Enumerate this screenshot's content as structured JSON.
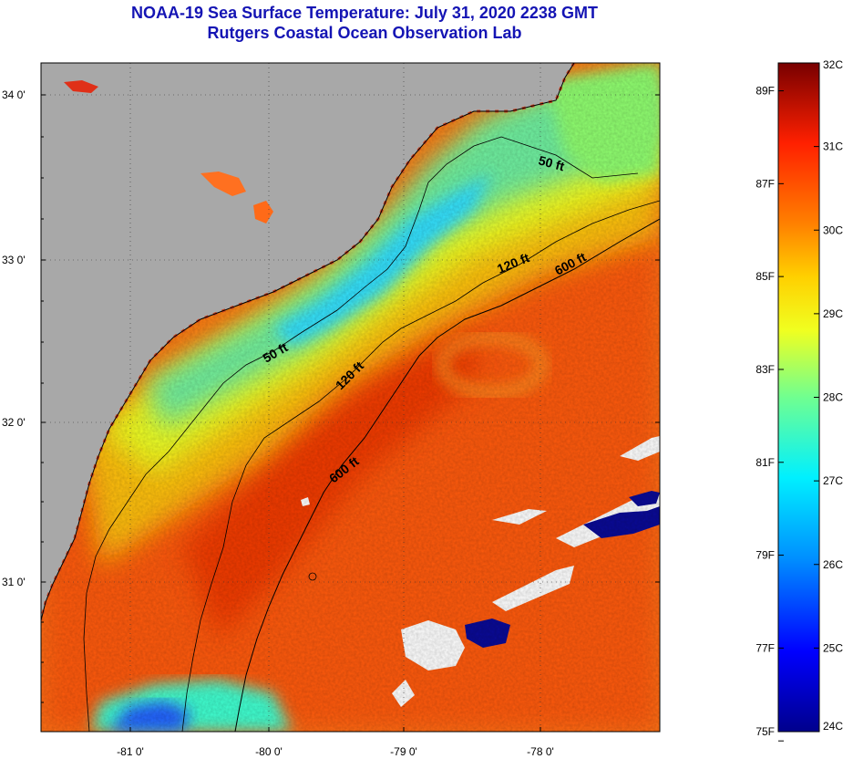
{
  "title_line1": "NOAA-19 Sea Surface Temperature:  July 31, 2020 2238 GMT",
  "title_line2": "Rutgers Coastal Ocean Observation Lab",
  "colors": {
    "land": "#a8a8a8",
    "coastline": "#000000",
    "no_data": "#ffffff",
    "title": "#1414b4"
  },
  "latitude_labels": [
    "34 0'",
    "33 0'",
    "32 0'",
    "31 0'"
  ],
  "longitude_labels": [
    "-81 0'",
    "-80 0'",
    "-79 0'",
    "-78 0'"
  ],
  "isobaths": {
    "shelf_50": "50 ft",
    "shelf_120": "120 ft",
    "slope_600": "600 ft",
    "nearshore_50": "50 ft",
    "mid_120": "120 ft",
    "deep_600": "600 ft"
  },
  "colorbar": {
    "celsius_labels": [
      "32C",
      "31C",
      "30C",
      "29C",
      "28C",
      "27C",
      "26C",
      "25C",
      "24C"
    ],
    "fahrenheit_labels": [
      "89F",
      "87F",
      "85F",
      "83F",
      "81F",
      "79F",
      "77F",
      "75F"
    ],
    "celsius_range": [
      24,
      32
    ]
  }
}
